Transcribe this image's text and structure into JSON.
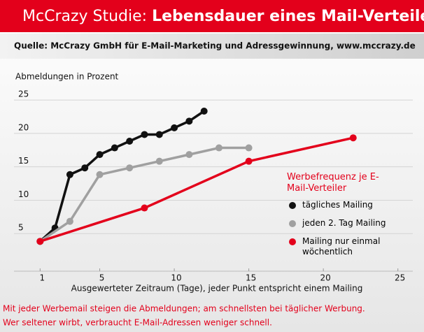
{
  "title_lead": "McCrazy Studie:",
  "title": "Lebensdauer eines Mail-Verteilers",
  "source": "Quelle: McCrazy GmbH für E-Mail-Marketing und Adressgewinnung, www.mccrazy.de",
  "notes": [
    "Mit jeder Werbemail steigen die Abmeldungen; am schnellsten bei täglicher Werbung.",
    "Wer seltener wirbt, verbraucht E-Mail-Adressen weniger schnell."
  ],
  "chart_data": {
    "type": "line",
    "y_label": "Abmeldungen in Prozent",
    "x_label": "Ausgewerteter Zeitraum (Tage), jeder Punkt entspricht einem Mailing",
    "legend_title": "Werbefrequenz je E-Mail-Verteiler",
    "xlim": [
      0,
      26
    ],
    "xticks": [
      1,
      5,
      10,
      15,
      20,
      25
    ],
    "ylim": [
      0,
      27
    ],
    "yticks": [
      5,
      10,
      15,
      20,
      25
    ],
    "grid": true,
    "series": [
      {
        "name": "tägliches Mailing",
        "color": "#111111",
        "x": [
          1,
          2,
          3,
          4,
          5,
          6,
          7,
          8,
          9,
          10,
          11,
          12
        ],
        "values": [
          3,
          5,
          13,
          14,
          16,
          17,
          18,
          19,
          19,
          20,
          21,
          22.5
        ]
      },
      {
        "name": "jeden 2. Tag Mailing",
        "color": "#a0a0a0",
        "x": [
          1,
          3,
          5,
          7,
          9,
          11,
          13,
          15
        ],
        "values": [
          3,
          6,
          13,
          14,
          15,
          16,
          17,
          17
        ]
      },
      {
        "name": "Mailing nur einmal wöchentlich",
        "color": "#e3001b",
        "x": [
          1,
          8,
          15,
          22
        ],
        "values": [
          3,
          8,
          15,
          18.5
        ]
      }
    ]
  }
}
